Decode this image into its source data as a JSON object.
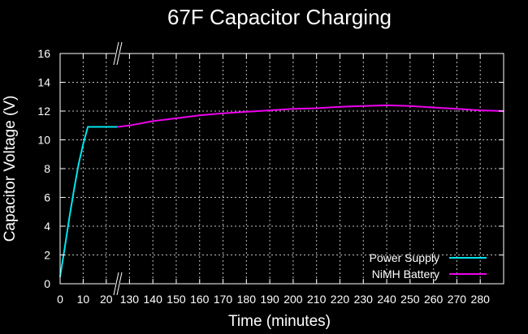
{
  "chart_data": {
    "type": "line",
    "title": "67F Capacitor Charging",
    "xlabel": "Time (minutes)",
    "ylabel": "Capacitor Voltage (V)",
    "ylim": [
      0,
      16
    ],
    "yticks": [
      "0",
      "2",
      "4",
      "6",
      "8",
      "10",
      "12",
      "14",
      "16"
    ],
    "x_axis_broken": true,
    "x_segments": [
      {
        "range": [
          0,
          25
        ],
        "tick_values": [
          0,
          10,
          20
        ]
      },
      {
        "range": [
          125,
          290
        ],
        "tick_values": [
          130,
          140,
          150,
          160,
          170,
          180,
          190,
          200,
          210,
          220,
          230,
          240,
          250,
          260,
          270,
          280
        ]
      }
    ],
    "grid": true,
    "legend_position": "bottom-right",
    "series": [
      {
        "name": "Power Supply",
        "color": "#00e5ee",
        "points": [
          [
            0,
            0.5
          ],
          [
            2,
            2.5
          ],
          [
            4,
            4.6
          ],
          [
            6,
            6.5
          ],
          [
            8,
            8.3
          ],
          [
            10,
            9.7
          ],
          [
            12,
            10.9
          ],
          [
            15,
            10.9
          ],
          [
            20,
            10.9
          ],
          [
            25,
            10.9
          ]
        ]
      },
      {
        "name": "NiMH Battery",
        "color": "#ee00ee",
        "points": [
          [
            125,
            10.9
          ],
          [
            130,
            11.0
          ],
          [
            140,
            11.3
          ],
          [
            150,
            11.5
          ],
          [
            160,
            11.7
          ],
          [
            170,
            11.85
          ],
          [
            180,
            11.95
          ],
          [
            190,
            12.05
          ],
          [
            200,
            12.15
          ],
          [
            210,
            12.2
          ],
          [
            220,
            12.3
          ],
          [
            230,
            12.35
          ],
          [
            240,
            12.4
          ],
          [
            250,
            12.35
          ],
          [
            260,
            12.25
          ],
          [
            270,
            12.15
          ],
          [
            280,
            12.05
          ],
          [
            290,
            12.0
          ]
        ]
      }
    ]
  }
}
